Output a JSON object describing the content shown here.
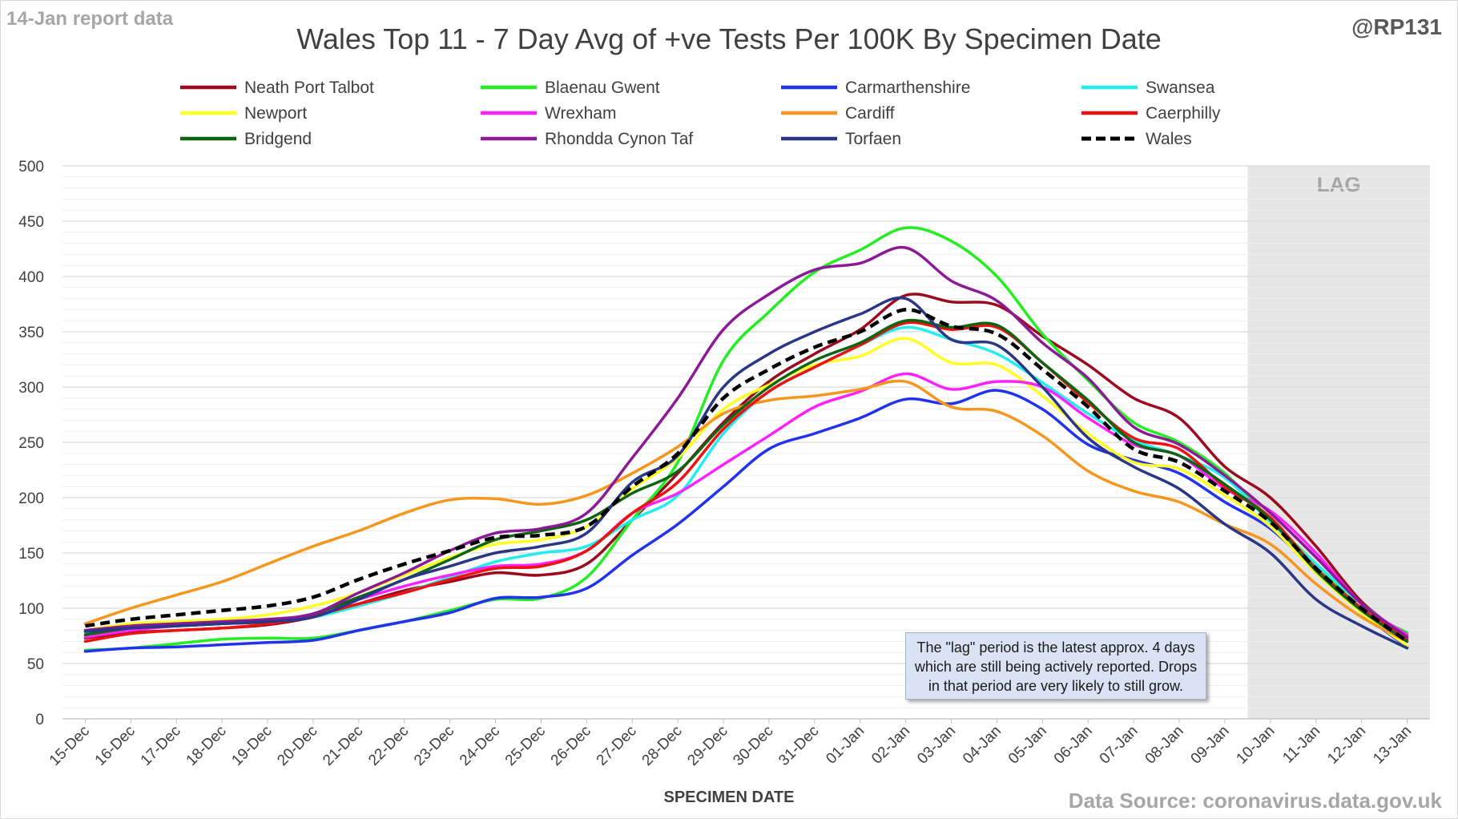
{
  "header": {
    "report_date": "14-Jan report data",
    "handle": "@RP131",
    "title": "Wales Top 11 - 7 Day Avg of +ve Tests Per 100K By Specimen Date"
  },
  "footer": {
    "xlabel": "SPECIMEN DATE",
    "source": "Data Source: coronavirus.data.gov.uk"
  },
  "lag": {
    "label": "LAG",
    "note": "The \"lag\" period is the latest approx. 4 days which are still being actively reported.  Drops in that period are very likely to still grow."
  },
  "chart_data": {
    "type": "line",
    "title": "Wales Top 11 - 7 Day Avg of +ve Tests Per 100K By Specimen Date",
    "xlabel": "SPECIMEN DATE",
    "ylabel": "",
    "ylim": [
      0,
      500
    ],
    "yticks": [
      0,
      50,
      100,
      150,
      200,
      250,
      300,
      350,
      400,
      450,
      500
    ],
    "grid": true,
    "legend_position": "top",
    "lag_region": {
      "from": "10-Jan",
      "to": "13-Jan",
      "color": "#e7e6e6"
    },
    "categories": [
      "15-Dec",
      "16-Dec",
      "17-Dec",
      "18-Dec",
      "19-Dec",
      "20-Dec",
      "21-Dec",
      "22-Dec",
      "23-Dec",
      "24-Dec",
      "25-Dec",
      "26-Dec",
      "27-Dec",
      "28-Dec",
      "29-Dec",
      "30-Dec",
      "31-Dec",
      "01-Jan",
      "02-Jan",
      "03-Jan",
      "04-Jan",
      "05-Jan",
      "06-Jan",
      "07-Jan",
      "08-Jan",
      "09-Jan",
      "10-Jan",
      "11-Jan",
      "12-Jan",
      "13-Jan"
    ],
    "series": [
      {
        "name": "Neath Port Talbot",
        "color": "#9b0a1e",
        "dash": false,
        "values": [
          73,
          78,
          80,
          82,
          85,
          92,
          104,
          116,
          124,
          132,
          130,
          140,
          180,
          222,
          268,
          305,
          330,
          352,
          383,
          377,
          374,
          346,
          320,
          290,
          272,
          228,
          200,
          156,
          106,
          74
        ]
      },
      {
        "name": "Blaenau Gwent",
        "color": "#22ee22",
        "dash": false,
        "values": [
          62,
          64,
          68,
          72,
          73,
          73,
          80,
          88,
          98,
          108,
          109,
          128,
          180,
          232,
          324,
          368,
          404,
          424,
          444,
          432,
          400,
          348,
          306,
          268,
          250,
          222,
          180,
          140,
          100,
          78
        ]
      },
      {
        "name": "Carmarthenshire",
        "color": "#2233ee",
        "dash": false,
        "values": [
          61,
          64,
          65,
          67,
          69,
          71,
          80,
          88,
          96,
          109,
          110,
          118,
          148,
          176,
          210,
          244,
          258,
          272,
          289,
          285,
          297,
          280,
          248,
          234,
          222,
          196,
          172,
          134,
          96,
          65
        ]
      },
      {
        "name": "Swansea",
        "color": "#22eeee",
        "dash": false,
        "values": [
          78,
          82,
          84,
          86,
          88,
          92,
          102,
          114,
          128,
          142,
          150,
          156,
          180,
          202,
          258,
          296,
          318,
          338,
          354,
          343,
          330,
          304,
          276,
          252,
          238,
          218,
          178,
          140,
          104,
          74
        ]
      },
      {
        "name": "Newport",
        "color": "#ffff22",
        "dash": false,
        "values": [
          80,
          86,
          88,
          90,
          94,
          102,
          114,
          130,
          146,
          158,
          162,
          174,
          208,
          236,
          280,
          302,
          320,
          328,
          344,
          322,
          320,
          292,
          258,
          232,
          226,
          202,
          174,
          132,
          96,
          66
        ]
      },
      {
        "name": "Wrexham",
        "color": "#ff22ff",
        "dash": false,
        "values": [
          74,
          80,
          84,
          86,
          88,
          95,
          108,
          120,
          130,
          138,
          140,
          152,
          186,
          204,
          230,
          256,
          282,
          296,
          312,
          298,
          305,
          300,
          272,
          248,
          238,
          208,
          188,
          150,
          104,
          76
        ]
      },
      {
        "name": "Cardiff",
        "color": "#f7961e",
        "dash": false,
        "values": [
          86,
          100,
          112,
          124,
          140,
          156,
          170,
          186,
          198,
          199,
          194,
          202,
          222,
          246,
          276,
          288,
          292,
          298,
          305,
          282,
          278,
          256,
          224,
          206,
          196,
          176,
          158,
          122,
          92,
          70
        ]
      },
      {
        "name": "Caerphilly",
        "color": "#ee1111",
        "dash": false,
        "values": [
          70,
          77,
          80,
          82,
          86,
          93,
          104,
          114,
          126,
          136,
          138,
          152,
          186,
          214,
          262,
          296,
          318,
          338,
          358,
          352,
          354,
          322,
          286,
          254,
          244,
          210,
          182,
          136,
          100,
          72
        ]
      },
      {
        "name": "Bridgend",
        "color": "#0f6411",
        "dash": false,
        "values": [
          76,
          82,
          84,
          86,
          88,
          95,
          110,
          126,
          144,
          162,
          170,
          180,
          204,
          224,
          266,
          300,
          324,
          340,
          360,
          354,
          356,
          322,
          288,
          250,
          238,
          212,
          180,
          134,
          98,
          70
        ]
      },
      {
        "name": "Rhondda Cynon Taf",
        "color": "#8c1a96",
        "dash": false,
        "values": [
          80,
          84,
          86,
          88,
          90,
          95,
          114,
          132,
          152,
          168,
          172,
          186,
          236,
          290,
          352,
          384,
          406,
          412,
          426,
          396,
          378,
          340,
          308,
          264,
          248,
          220,
          186,
          146,
          104,
          74
        ]
      },
      {
        "name": "Torfaen",
        "color": "#2a3686",
        "dash": false,
        "values": [
          79,
          82,
          84,
          86,
          88,
          92,
          108,
          126,
          138,
          150,
          156,
          168,
          214,
          238,
          300,
          330,
          350,
          366,
          380,
          343,
          338,
          300,
          254,
          228,
          208,
          176,
          150,
          108,
          84,
          64
        ]
      },
      {
        "name": "Wales",
        "color": "#000000",
        "dash": true,
        "values": [
          84,
          90,
          94,
          98,
          102,
          110,
          126,
          140,
          152,
          164,
          166,
          174,
          210,
          240,
          290,
          316,
          336,
          350,
          370,
          355,
          348,
          316,
          282,
          244,
          232,
          206,
          178,
          136,
          100,
          70
        ]
      }
    ]
  }
}
